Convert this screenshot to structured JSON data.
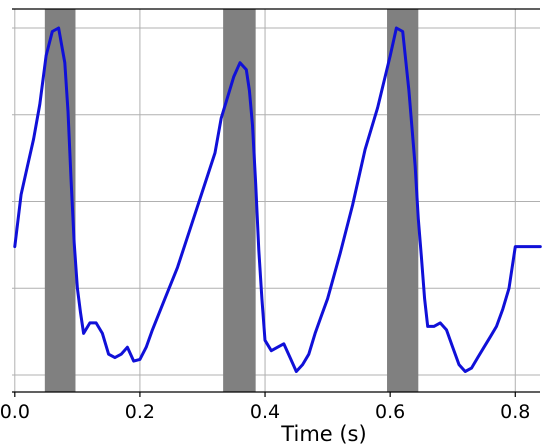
{
  "chart_data": {
    "type": "line",
    "xlabel": "Time (s)",
    "ylabel": "",
    "title": "",
    "grid": true,
    "xlim": [
      0.0,
      0.84
    ],
    "ylim": [
      0.0,
      1.0
    ],
    "x_ticks": [
      0.0,
      0.2,
      0.4,
      0.6,
      0.8
    ],
    "x_tick_labels": [
      "0.0",
      "0.2",
      "0.4",
      "0.6",
      "0.8"
    ],
    "y_gridlines": [
      0.0,
      0.25,
      0.5,
      0.75,
      1.0
    ],
    "line_color": "#1010d8",
    "band_color": "#808080",
    "shaded_intervals": [
      [
        0.048,
        0.097
      ],
      [
        0.333,
        0.385
      ],
      [
        0.595,
        0.645
      ]
    ],
    "series": [
      {
        "x": [
          0.0,
          0.01,
          0.02,
          0.03,
          0.04,
          0.05,
          0.06,
          0.07,
          0.08,
          0.085,
          0.09,
          0.095,
          0.1,
          0.105,
          0.11,
          0.12,
          0.13,
          0.14,
          0.15,
          0.16,
          0.17,
          0.18,
          0.19,
          0.2,
          0.21,
          0.22,
          0.24,
          0.26,
          0.28,
          0.3,
          0.32,
          0.33,
          0.34,
          0.35,
          0.36,
          0.37,
          0.375,
          0.38,
          0.385,
          0.39,
          0.395,
          0.4,
          0.41,
          0.42,
          0.43,
          0.44,
          0.45,
          0.46,
          0.47,
          0.48,
          0.49,
          0.5,
          0.52,
          0.54,
          0.56,
          0.58,
          0.6,
          0.61,
          0.62,
          0.63,
          0.64,
          0.645,
          0.65,
          0.655,
          0.66,
          0.67,
          0.68,
          0.69,
          0.7,
          0.71,
          0.72,
          0.73,
          0.74,
          0.75,
          0.76,
          0.77,
          0.78,
          0.79,
          0.8,
          0.81,
          0.82,
          0.83,
          0.84
        ],
        "y": [
          0.37,
          0.52,
          0.6,
          0.68,
          0.78,
          0.92,
          0.99,
          1.0,
          0.9,
          0.76,
          0.56,
          0.38,
          0.25,
          0.18,
          0.12,
          0.15,
          0.15,
          0.12,
          0.06,
          0.05,
          0.06,
          0.08,
          0.04,
          0.045,
          0.08,
          0.13,
          0.22,
          0.31,
          0.42,
          0.53,
          0.64,
          0.74,
          0.8,
          0.86,
          0.9,
          0.88,
          0.82,
          0.72,
          0.55,
          0.36,
          0.22,
          0.1,
          0.07,
          0.08,
          0.09,
          0.05,
          0.01,
          0.03,
          0.06,
          0.12,
          0.17,
          0.22,
          0.35,
          0.49,
          0.65,
          0.77,
          0.92,
          1.0,
          0.99,
          0.82,
          0.6,
          0.45,
          0.34,
          0.22,
          0.14,
          0.14,
          0.15,
          0.13,
          0.08,
          0.03,
          0.01,
          0.02,
          0.05,
          0.08,
          0.11,
          0.14,
          0.19,
          0.25,
          0.37,
          0.37,
          0.37,
          0.37,
          0.37
        ]
      }
    ]
  }
}
